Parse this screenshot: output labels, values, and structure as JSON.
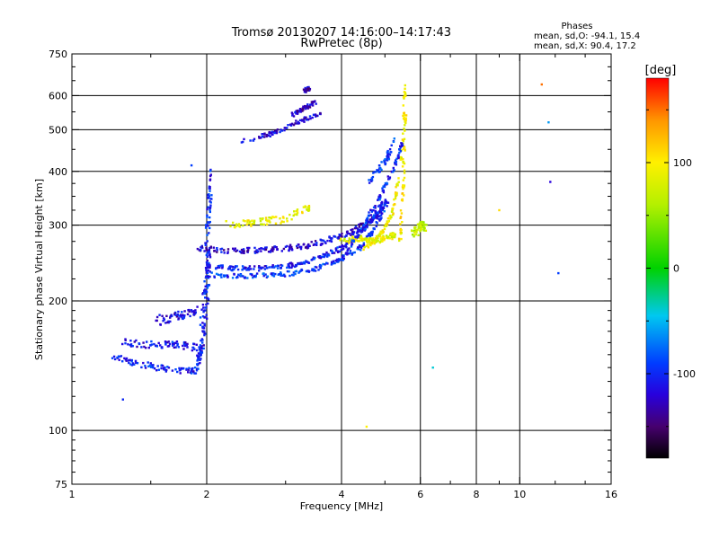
{
  "chart_data": {
    "type": "scatter",
    "title": "Tromsø 20130207 14:16:00–14:17:43",
    "subtitle": "RwPretec (8p)",
    "xlabel": "Frequency [MHz]",
    "ylabel": "Stationary phase Virtual Height [km]",
    "x_scale": "log",
    "y_scale": "log",
    "xlim": [
      1,
      16
    ],
    "ylim": [
      75,
      750
    ],
    "x_ticks": [
      1,
      2,
      4,
      6,
      8,
      10,
      16
    ],
    "x_tick_labels": [
      "1",
      "2",
      "4",
      "6",
      "8",
      "10",
      "16"
    ],
    "y_ticks": [
      75,
      100,
      200,
      300,
      400,
      500,
      600,
      750
    ],
    "y_tick_labels": [
      "75",
      "100",
      "200",
      "300",
      "400",
      "500",
      "600",
      "750"
    ],
    "grid": true,
    "stats": {
      "header": "Phases",
      "line_o": "mean, sd,O: -94.1, 15.4",
      "line_x": "mean, sd,X:  90.4, 17.2"
    },
    "colorbar": {
      "label": "[deg]",
      "range": [
        -180,
        180
      ],
      "ticks": [
        100,
        0,
        -100
      ],
      "tick_labels": [
        "100",
        "0",
        "-100"
      ],
      "colormap": "rainbow"
    },
    "traces": [
      {
        "x": [
          1.22,
          1.45,
          1.7,
          1.9
        ],
        "y": [
          148,
          142,
          138,
          138
        ],
        "phase": -105,
        "spread": 0.035
      },
      {
        "x": [
          1.3,
          1.55,
          1.75,
          1.95
        ],
        "y": [
          160,
          158,
          158,
          155
        ],
        "phase": -110,
        "spread": 0.04
      },
      {
        "x": [
          1.55,
          1.75,
          1.9
        ],
        "y": [
          180,
          185,
          190
        ],
        "phase": -112,
        "spread": 0.05
      },
      {
        "x": [
          1.9,
          1.95,
          2.0,
          2.02
        ],
        "y": [
          140,
          155,
          200,
          260
        ],
        "phase": -105,
        "spread": 0.04
      },
      {
        "x": [
          1.95,
          2.0,
          2.02,
          2.05
        ],
        "y": [
          170,
          230,
          320,
          400
        ],
        "phase": -100,
        "spread": 0.04
      },
      {
        "x": [
          1.9,
          2.2,
          2.6,
          3.0,
          3.4,
          3.9,
          4.3,
          4.7,
          5.0
        ],
        "y": [
          265,
          262,
          262,
          265,
          270,
          280,
          292,
          310,
          330
        ],
        "phase": -120,
        "spread": 0.03
      },
      {
        "x": [
          2.0,
          2.3,
          2.7,
          3.1,
          3.5,
          3.9,
          4.3,
          4.7,
          5.0
        ],
        "y": [
          240,
          238,
          238,
          242,
          250,
          262,
          280,
          310,
          345
        ],
        "phase": -105,
        "spread": 0.025
      },
      {
        "x": [
          2.0,
          2.4,
          2.9,
          3.4,
          3.9,
          4.4,
          4.8,
          5.1
        ],
        "y": [
          230,
          228,
          230,
          235,
          248,
          265,
          300,
          350
        ],
        "phase": -95,
        "spread": 0.025
      },
      {
        "x": [
          2.4,
          2.8,
          3.2,
          3.6
        ],
        "y": [
          470,
          490,
          520,
          550
        ],
        "phase": -115,
        "spread": 0.025
      },
      {
        "x": [
          3.1,
          3.3,
          3.5
        ],
        "y": [
          540,
          560,
          580
        ],
        "phase": -125,
        "spread": 0.02
      },
      {
        "x": [
          3.3,
          3.4
        ],
        "y": [
          615,
          625
        ],
        "phase": -130,
        "spread": 0.02
      },
      {
        "x": [
          4.0,
          4.4,
          4.7,
          5.0,
          5.3
        ],
        "y": [
          275,
          280,
          275,
          280,
          285
        ],
        "phase": 85,
        "spread": 0.03
      },
      {
        "x": [
          4.5,
          4.9,
          5.2,
          5.45,
          5.55
        ],
        "y": [
          265,
          285,
          320,
          430,
          640
        ],
        "phase": 95,
        "spread": 0.018
      },
      {
        "x": [
          5.4,
          5.5,
          5.55
        ],
        "y": [
          270,
          380,
          540
        ],
        "phase": 100,
        "spread": 0.02
      },
      {
        "x": [
          4.0,
          4.4,
          4.8,
          5.2,
          5.5
        ],
        "y": [
          250,
          290,
          340,
          400,
          470
        ],
        "phase": -100,
        "spread": 0.02
      },
      {
        "x": [
          4.6,
          5.0,
          5.3
        ],
        "y": [
          380,
          420,
          480
        ],
        "phase": -90,
        "spread": 0.03
      },
      {
        "x": [
          5.8,
          6.0,
          6.2
        ],
        "y": [
          285,
          300,
          295
        ],
        "phase": 70,
        "spread": 0.05
      },
      {
        "x": [
          2.2,
          2.6,
          3.0,
          3.4
        ],
        "y": [
          300,
          305,
          310,
          330
        ],
        "phase": 90,
        "spread": 0.04
      }
    ],
    "isolated_points": [
      {
        "x": 11.2,
        "y": 637,
        "phase": 150
      },
      {
        "x": 11.6,
        "y": 520,
        "phase": -60
      },
      {
        "x": 11.7,
        "y": 378,
        "phase": -120
      },
      {
        "x": 12.2,
        "y": 232,
        "phase": -90
      },
      {
        "x": 9.0,
        "y": 325,
        "phase": 110
      },
      {
        "x": 6.4,
        "y": 140,
        "phase": -40
      },
      {
        "x": 4.55,
        "y": 102,
        "phase": 100
      },
      {
        "x": 1.3,
        "y": 118,
        "phase": -100
      },
      {
        "x": 1.85,
        "y": 413,
        "phase": -90
      }
    ]
  }
}
